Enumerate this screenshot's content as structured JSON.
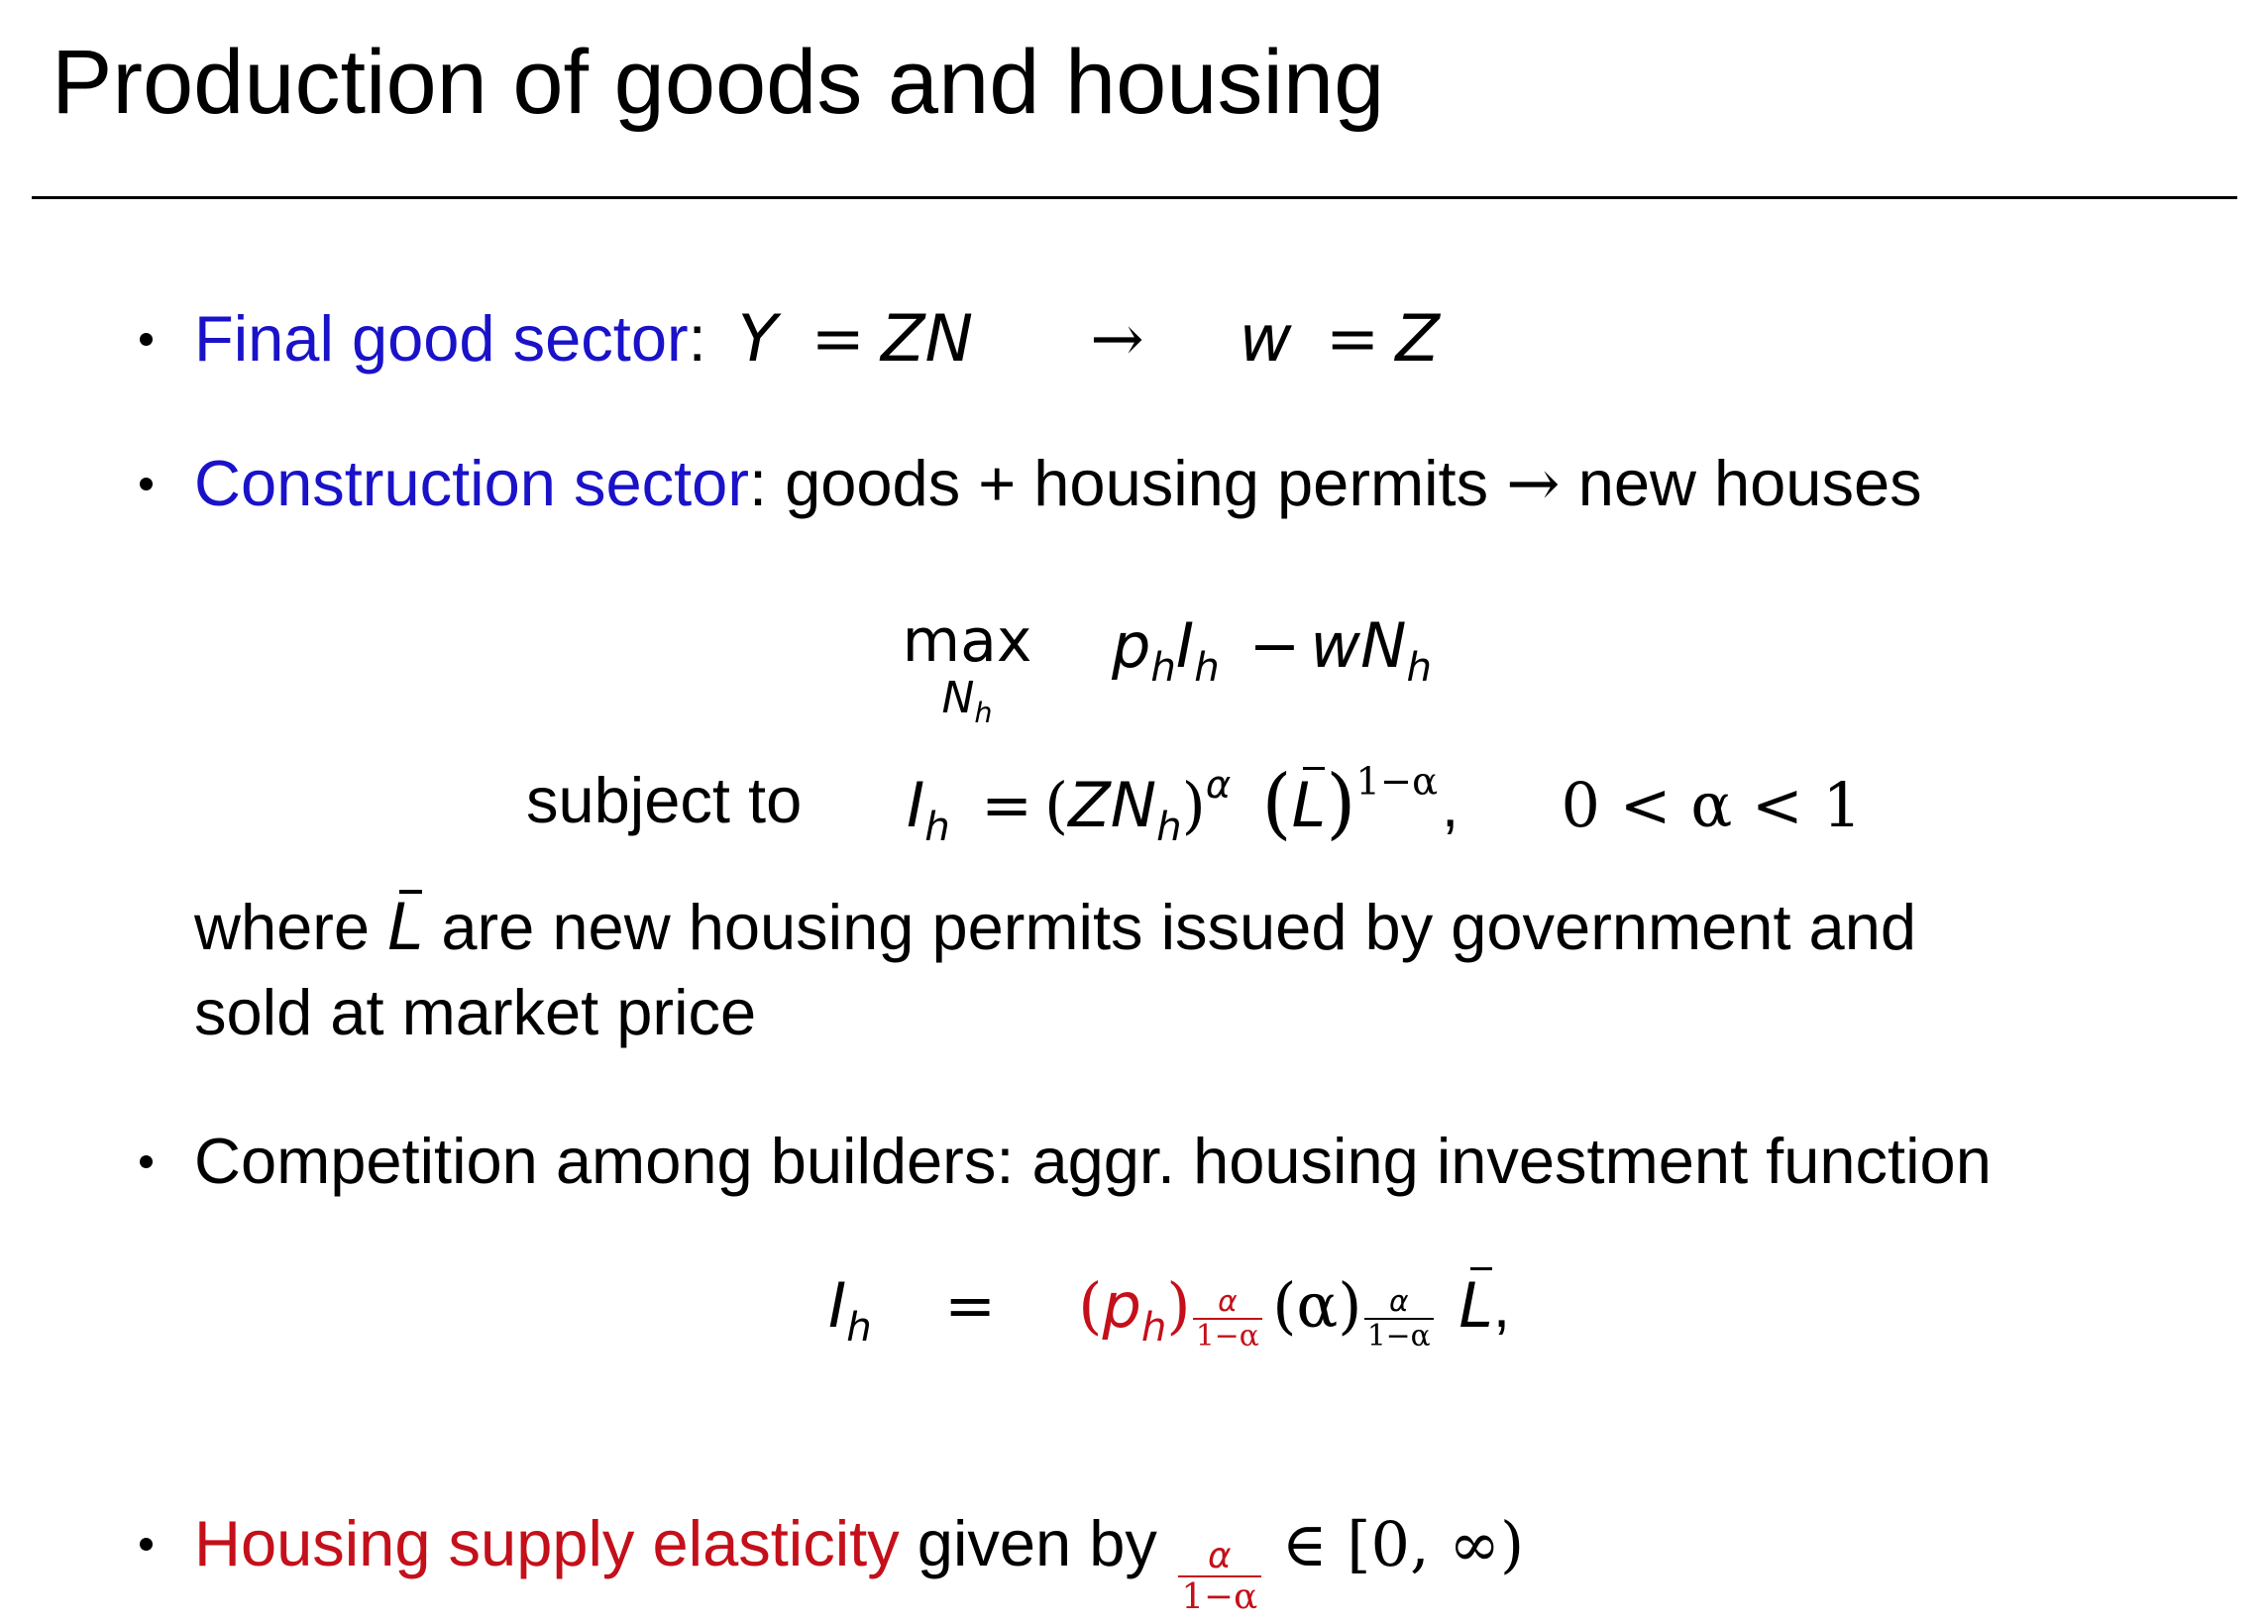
{
  "title": "Production of goods and housing",
  "colors": {
    "blue": "#1a12c9",
    "red": "#c4101a"
  },
  "bullets": [
    {
      "label": "Final good sector",
      "sep": ":",
      "math": {
        "Y": "Y",
        "eq1": "=",
        "ZN": "ZN",
        "arrow": "→",
        "w": "w",
        "eq2": "=",
        "Z": "Z"
      }
    },
    {
      "label": "Construction sector",
      "sep": ":",
      "text": " goods + housing permits ",
      "arrow": "→",
      "text2": " new houses"
    },
    {
      "text": "Competition among builders: aggr. housing investment function"
    },
    {
      "label": "Housing supply elasticity",
      "text": " given by ",
      "frac_num": "α",
      "frac_den": "1−α",
      "set": "∈ [0, ∞)"
    }
  ],
  "optimization": {
    "max": "max",
    "max_sub_var": "N",
    "max_sub_idx": "h",
    "objective": {
      "p": "p",
      "h1": "h",
      "I": "I",
      "h2": "h",
      "minus": "−",
      "w": "w",
      "N": "N",
      "h3": "h"
    },
    "subject_to": "subject to",
    "constraint": {
      "I": "I",
      "h": "h",
      "eq": "=",
      "lp": "(",
      "ZN": "ZN",
      "h2": "h",
      "rp": ")",
      "alpha": "α",
      "L": "L",
      "exp": "1−α",
      "comma": ",",
      "range": "0 < α < 1"
    }
  },
  "where_line1_a": "where ",
  "where_L": "L",
  "where_line1_b": " are new housing permits issued by government and",
  "where_line2": "sold at market price",
  "investment_eq": {
    "I": "I",
    "h": "h",
    "eq": "=",
    "lp": "(",
    "p": "p",
    "ph": "h",
    "rp": ")",
    "exp_num": "α",
    "exp_den": "1−α",
    "alpha_paren": "(α)",
    "exp2_num": "α",
    "exp2_den": "1−α",
    "L": "L",
    "comma": ","
  }
}
